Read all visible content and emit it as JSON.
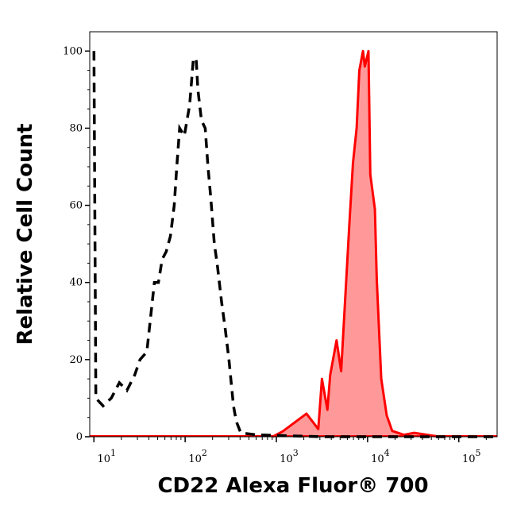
{
  "chart_data": {
    "type": "area",
    "title": "",
    "xlabel": "CD22 Alexa Fluor® 700",
    "ylabel": "Relative Cell Count",
    "xscale": "log",
    "xlim": [
      9,
      263000
    ],
    "ylim": [
      0,
      105
    ],
    "grid": false,
    "x_ticks": [
      {
        "base": "10",
        "exp": "1",
        "value": 10
      },
      {
        "base": "10",
        "exp": "2",
        "value": 100
      },
      {
        "base": "10",
        "exp": "3",
        "value": 1000
      },
      {
        "base": "10",
        "exp": "4",
        "value": 10000
      },
      {
        "base": "10",
        "exp": "5",
        "value": 100000
      }
    ],
    "y_ticks": [
      0,
      20,
      40,
      60,
      80,
      100
    ],
    "series": [
      {
        "style": "dashed-line",
        "color": "#000000",
        "x": [
          10,
          10.5,
          12.6,
          15.5,
          19,
          23,
          28,
          32,
          38,
          46,
          51,
          56,
          62,
          69,
          76,
          81,
          87,
          98,
          112,
          123,
          132,
          138,
          151,
          166,
          178,
          191,
          209,
          224,
          251,
          275,
          302,
          339,
          363,
          407,
          603,
          3162,
          263000
        ],
        "y": [
          100,
          10,
          8,
          10,
          14,
          12,
          16,
          20,
          22,
          40,
          40,
          46,
          48,
          52,
          60,
          70,
          80,
          78,
          86,
          98,
          98,
          90,
          82,
          80,
          70,
          62,
          50,
          45,
          35,
          28,
          20,
          8,
          4,
          1,
          0.5,
          0,
          0
        ]
      },
      {
        "style": "filled-area",
        "color": "#ff0000",
        "fill": "#ff9999",
        "x": [
          912,
          1175,
          2138,
          2884,
          3162,
          3631,
          3890,
          4571,
          5129,
          5754,
          6310,
          6918,
          7586,
          8128,
          8913,
          9333,
          10233,
          10715,
          12023,
          12589,
          14125,
          16218,
          18621,
          25119,
          32359,
          61660
        ],
        "y": [
          0,
          1.4,
          6,
          2,
          15,
          7,
          16,
          25,
          17,
          38,
          55,
          71,
          80,
          95,
          100,
          96,
          100,
          68,
          59,
          41,
          15,
          5.5,
          1.5,
          0.5,
          1,
          0
        ]
      }
    ]
  }
}
